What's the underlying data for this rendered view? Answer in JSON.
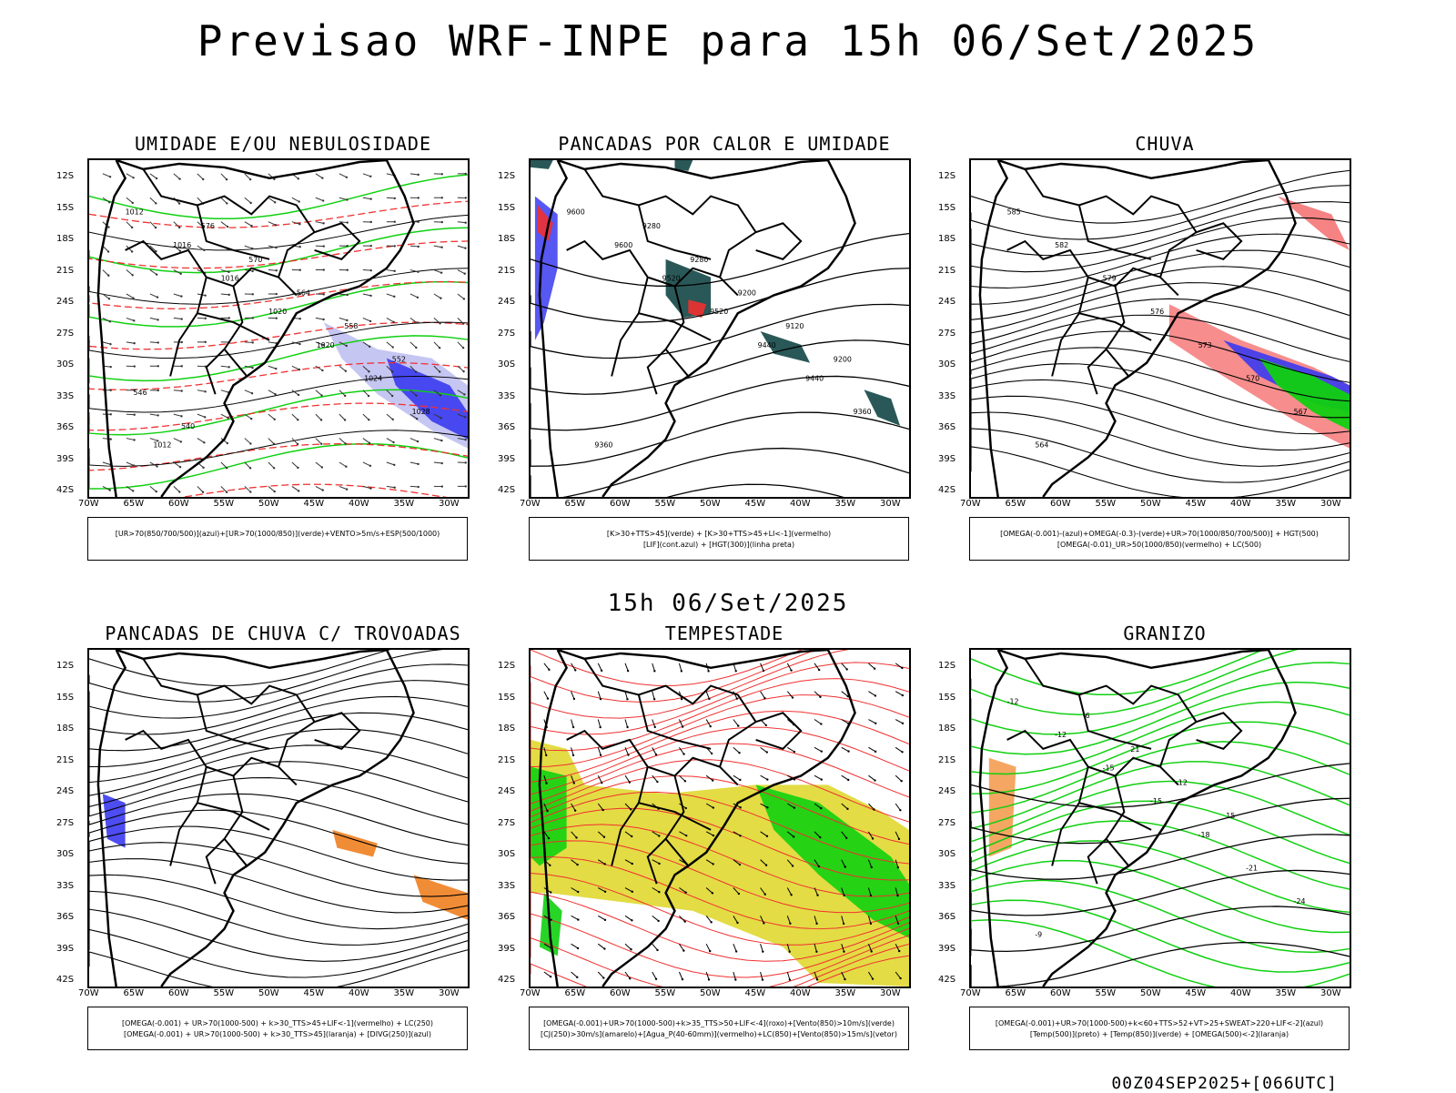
{
  "header": {
    "title": "Previsao WRF-INPE  para 15h 06/Set/2025"
  },
  "mid": {
    "title": "15h 06/Set/2025"
  },
  "footer": {
    "run": "00Z04SEP2025+[066UTC]"
  },
  "axes": {
    "lat": [
      "12S",
      "15S",
      "18S",
      "21S",
      "24S",
      "27S",
      "30S",
      "33S",
      "36S",
      "39S",
      "42S"
    ],
    "lon": [
      "70W",
      "65W",
      "60W",
      "55W",
      "50W",
      "45W",
      "40W",
      "35W",
      "30W"
    ]
  },
  "panels": [
    {
      "id": "umidade",
      "title": "UMIDADE E/OU NEBULOSIDADE",
      "legend": [
        "[UR>70(850/700/500)](azul)+[UR>70(1000/850)](verde)+VENTO>5m/s+ESP(500/1000)"
      ],
      "contour_labels": [
        "1012",
        "1016",
        "1016",
        "1020",
        "1020",
        "1024",
        "1028",
        "1012",
        "576",
        "570",
        "564",
        "558",
        "552",
        "546",
        "540"
      ]
    },
    {
      "id": "pancadas-calor",
      "title": "PANCADAS POR CALOR E UMIDADE",
      "legend": [
        "[K>30+TTS>45](verde) + [K>30+TTS>45+LI<-1](vermelho)",
        "[LIF](cont.azul) + [HGT(300)](linha preta)"
      ],
      "contour_labels": [
        "9600",
        "9600",
        "9520",
        "9520",
        "9440",
        "9440",
        "9360",
        "9360",
        "9280",
        "9280",
        "9200",
        "9120",
        "9200"
      ]
    },
    {
      "id": "chuva",
      "title": "CHUVA",
      "legend": [
        "[OMEGA(-0.001)-(azul)+OMEGA(-0.3)-(verde)+UR>70(1000/850/700/500)] + HGT(500)",
        "[OMEGA(-0.01)_UR>50(1000/850)(vermelho) + LC(500)"
      ],
      "contour_labels": [
        "585",
        "582",
        "579",
        "576",
        "573",
        "570",
        "567",
        "564"
      ]
    },
    {
      "id": "trovoadas",
      "title": "PANCADAS DE CHUVA C/ TROVOADAS",
      "legend": [
        "[OMEGA(-0.001) + UR>70(1000-500) + k>30_TTS>45+LIF<-1](vermelho) + LC(250)",
        "[OMEGA(-0.001) + UR>70(1000-500) + k>30_TTS>45](laranja) + [DIVG(250)](azul)"
      ],
      "contour_labels": []
    },
    {
      "id": "tempestade",
      "title": "TEMPESTADE",
      "legend": [
        "[OMEGA(-0.001)+UR>70(1000-500)+k>35_TTS>50+LIF<-4](roxo)+[Vento(850)>10m/s](verde)",
        "[CJ(250)>30m/s](amarelo)+[Agua_P(40-60mm)](vermelho)+LC(850)+[Vento(850)>15m/s](vetor)"
      ],
      "contour_labels": []
    },
    {
      "id": "granizo",
      "title": "GRANIZO",
      "legend": [
        "[OMEGA(-0.001)+UR>70(1000-500)+k<60+TTS>52+VT>25+SWEAT>220+LIF<-2](azul)",
        "[Temp(500)](preto) + [Temp(850)](verde) + [OMEGA(500)<-2](laranja)"
      ],
      "contour_labels": [
        "-12",
        "-12",
        "-15",
        "-15",
        "-18",
        "-21",
        "-24",
        "-9",
        "-6",
        "21",
        "12",
        "15"
      ]
    }
  ],
  "colors": {
    "blue": "#3a3af0",
    "lightblue": "#b8b8f0",
    "green": "#10d010",
    "red": "#f03030",
    "yellow": "#e0d830",
    "orange": "#f08020",
    "teal": "#1f4f4f",
    "darkgreen": "#108010"
  }
}
